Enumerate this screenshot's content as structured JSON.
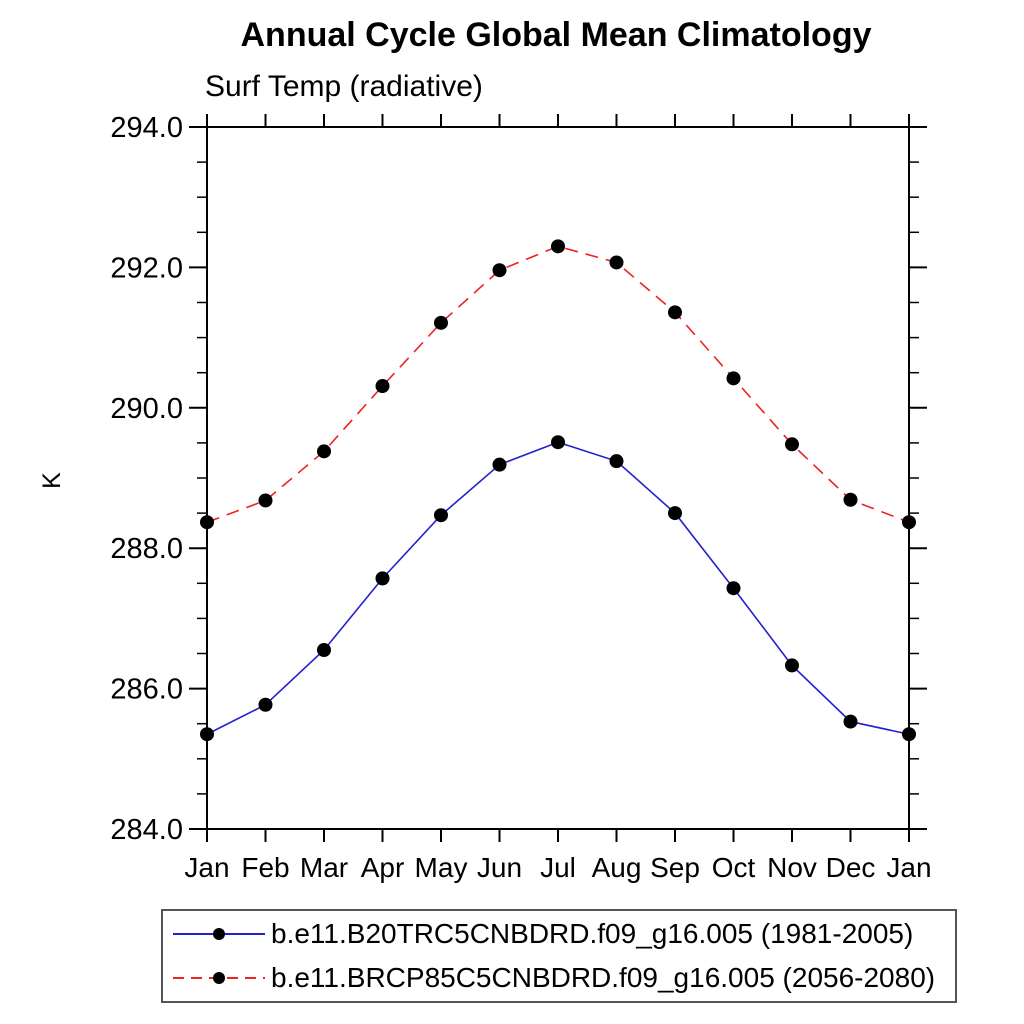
{
  "title": "Annual Cycle Global Mean Climatology",
  "chart_data": {
    "type": "line",
    "title": "Annual Cycle Global Mean Climatology",
    "subtitle": "Surf Temp (radiative)",
    "ylabel": "K",
    "xlabel": "",
    "ylim": [
      284.0,
      294.0
    ],
    "ytick_values": [
      284,
      286,
      288,
      290,
      292,
      294
    ],
    "ytick_labels": [
      "284.0",
      "286.0",
      "288.0",
      "290.0",
      "292.0",
      "294.0"
    ],
    "y_minor_tick_step": 0.5,
    "grid": false,
    "legend_position": "bottom",
    "axis_color": "#000000",
    "marker": "filled-circle",
    "marker_color": "#000000",
    "categories": [
      "Jan",
      "Feb",
      "Mar",
      "Apr",
      "May",
      "Jun",
      "Jul",
      "Aug",
      "Sep",
      "Oct",
      "Nov",
      "Dec",
      "Jan"
    ],
    "series": [
      {
        "name": "b.e11.B20TRC5CNBDRD.f09_g16.005 (1981-2005)",
        "style": "solid",
        "color": "#2222cc",
        "values": [
          285.35,
          285.77,
          286.55,
          287.57,
          288.47,
          289.19,
          289.51,
          289.24,
          288.5,
          287.43,
          286.33,
          285.53,
          285.35
        ]
      },
      {
        "name": "b.e11.BRCP85C5CNBDRD.f09_g16.005 (2056-2080)",
        "style": "dashed",
        "color": "#ee2222",
        "values": [
          288.37,
          288.68,
          289.38,
          290.31,
          291.21,
          291.96,
          292.3,
          292.07,
          291.36,
          290.42,
          289.48,
          288.69,
          288.37
        ]
      }
    ]
  }
}
